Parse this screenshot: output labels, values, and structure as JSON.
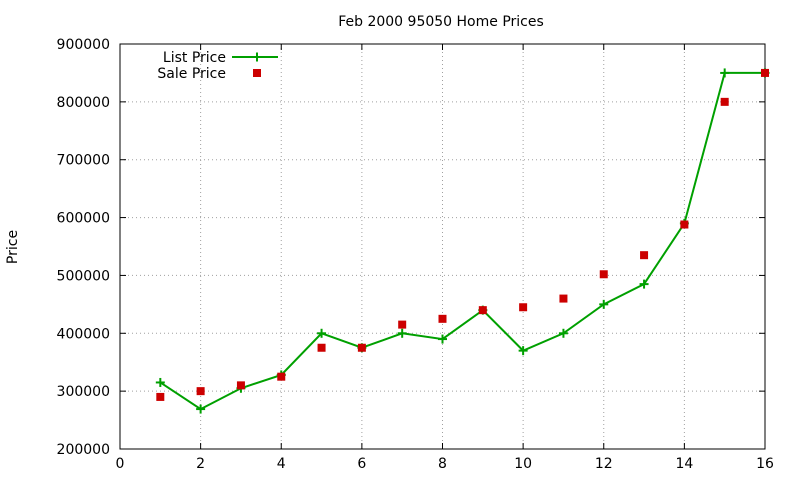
{
  "chart_data": {
    "type": "line",
    "title": "Feb 2000 95050 Home Prices",
    "xlabel": "",
    "ylabel": "Price",
    "xlim": [
      0,
      16
    ],
    "ylim": [
      200000,
      900000
    ],
    "x_ticks": [
      "0",
      "2",
      "4",
      "6",
      "8",
      "10",
      "12",
      "14",
      "16"
    ],
    "y_ticks": [
      "200000",
      "300000",
      "400000",
      "500000",
      "600000",
      "700000",
      "800000",
      "900000"
    ],
    "x_tick_values": [
      0,
      2,
      4,
      6,
      8,
      10,
      12,
      14,
      16
    ],
    "y_tick_values": [
      200000,
      300000,
      400000,
      500000,
      600000,
      700000,
      800000,
      900000
    ],
    "grid": true,
    "legend_position": "top-left",
    "series": [
      {
        "name": "List Price",
        "style": "linespoints",
        "marker": "plus",
        "color": "#00a000",
        "x": [
          1,
          2,
          3,
          4,
          5,
          6,
          7,
          8,
          9,
          10,
          11,
          12,
          13,
          14,
          15,
          16
        ],
        "values": [
          315000,
          269000,
          305000,
          328000,
          400000,
          375000,
          400000,
          390000,
          440000,
          370000,
          400000,
          450000,
          485000,
          590000,
          850000,
          850000
        ]
      },
      {
        "name": "Sale Price",
        "style": "points",
        "marker": "square",
        "color": "#cc0000",
        "x": [
          1,
          2,
          3,
          4,
          5,
          6,
          7,
          8,
          9,
          10,
          11,
          12,
          13,
          14,
          15,
          16
        ],
        "values": [
          290000,
          300000,
          310000,
          325000,
          375000,
          375000,
          415000,
          425000,
          440000,
          445000,
          460000,
          502000,
          535000,
          588000,
          800000,
          850000
        ]
      }
    ]
  }
}
